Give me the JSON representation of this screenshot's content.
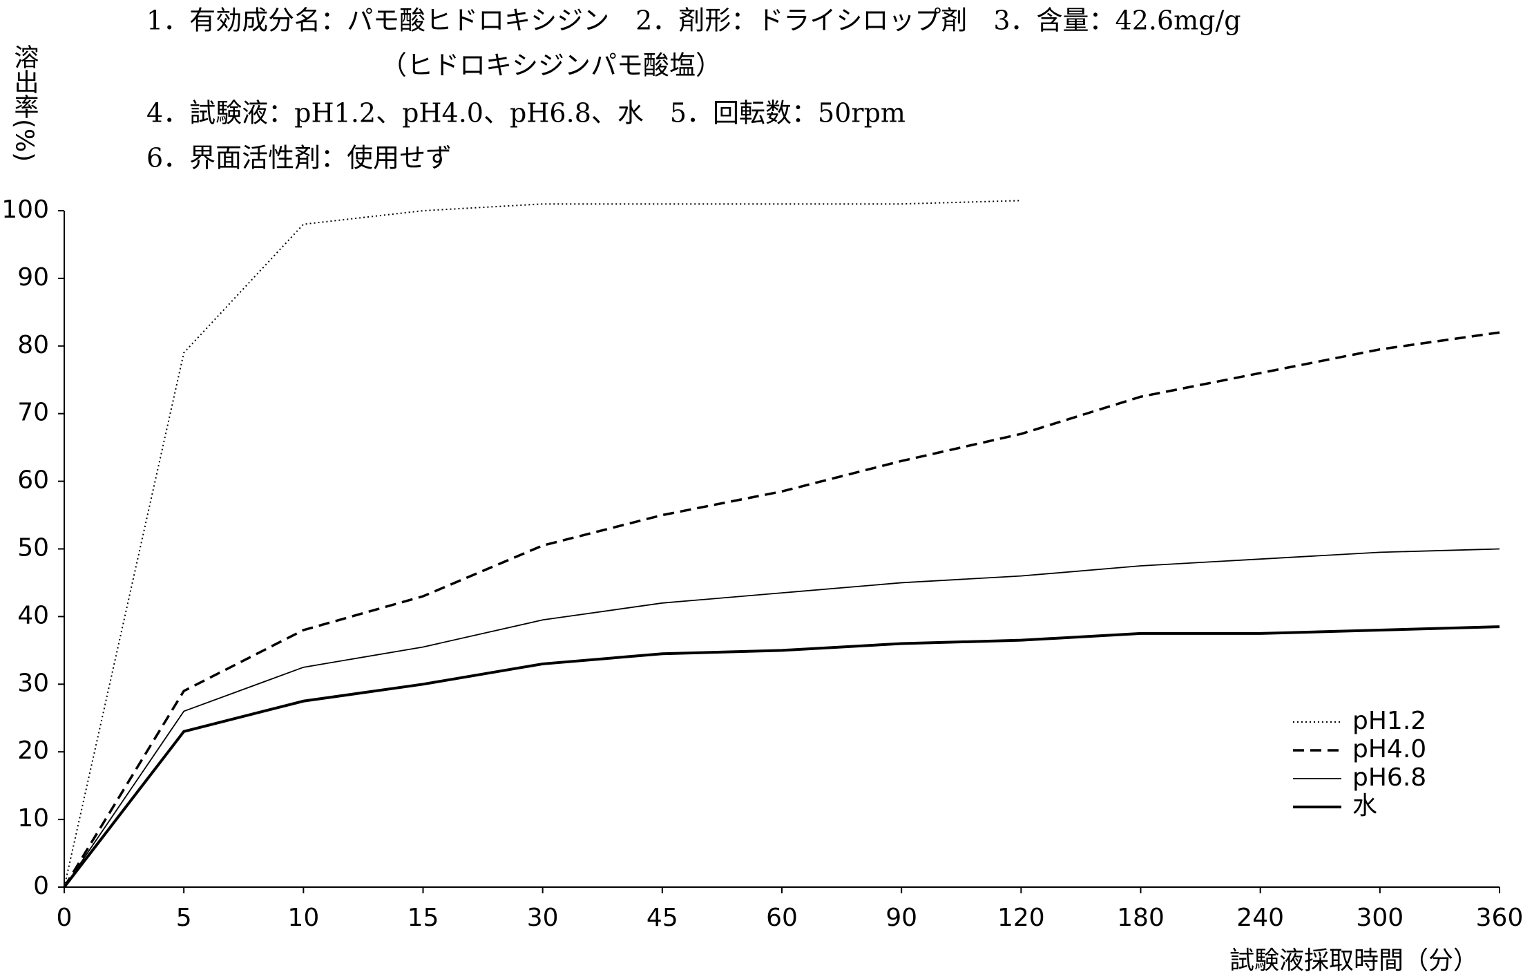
{
  "chart_data": {
    "type": "line",
    "annotations": [
      "1．有効成分名：パモ酸ヒドロキシジン　2．剤形：ドライシロップ剤　3．含量：42.6mg/g",
      "（ヒドロキシジンパモ酸塩）",
      "4．試験液：pH1.2、pH4.0、pH6.8、水　5．回転数：50rpm",
      "6．界面活性剤：使用せず"
    ],
    "y_label": "溶出率(%)",
    "x_label": "試験液採取時間（分）",
    "categories": [
      "0",
      "5",
      "10",
      "15",
      "30",
      "45",
      "60",
      "90",
      "120",
      "180",
      "240",
      "300",
      "360"
    ],
    "series": [
      {
        "name": "pH1.2",
        "color": "#000000",
        "line_style": "dotted",
        "values": [
          0,
          79,
          98,
          100,
          101,
          101,
          101,
          101,
          101.5,
          null,
          null,
          null,
          null
        ]
      },
      {
        "name": "pH4.0",
        "color": "#000000",
        "line_style": "dashed",
        "values": [
          0,
          29,
          38,
          43,
          50.5,
          55,
          58.5,
          63,
          67,
          72.5,
          76,
          79.5,
          82
        ]
      },
      {
        "name": "pH6.8",
        "color": "#000000",
        "line_style": "thin",
        "values": [
          0,
          26,
          32.5,
          35.5,
          39.5,
          42,
          43.5,
          45,
          46,
          47.5,
          48.5,
          49.5,
          50
        ]
      },
      {
        "name": "水",
        "color": "#000000",
        "line_style": "thick",
        "values": [
          0,
          23,
          27.5,
          30,
          33,
          34.5,
          35,
          36,
          36.5,
          37.5,
          37.5,
          38,
          38.5
        ]
      }
    ],
    "ylim": [
      0,
      100
    ],
    "yticks": [
      0,
      10,
      20,
      30,
      40,
      50,
      60,
      70,
      80,
      90,
      100
    ],
    "grid": false,
    "legend": "lower right"
  }
}
